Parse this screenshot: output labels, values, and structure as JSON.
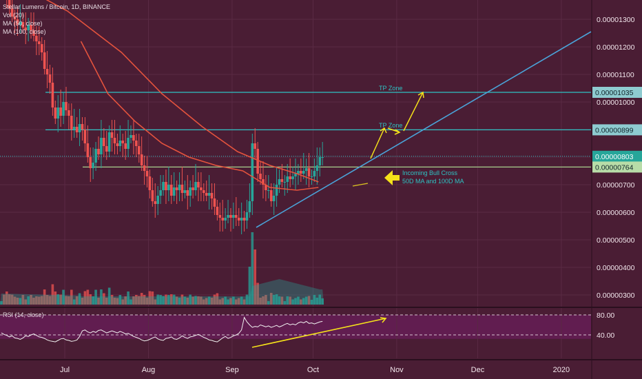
{
  "legend": {
    "symbol": "Stellar Lumens / Bitcoin, 1D, BINANCE",
    "vol": "Vol (20)",
    "ma50": "MA (50, close)",
    "ma100": "MA (100, close)"
  },
  "rsi_label": "RSI (14, close)",
  "colors": {
    "background": "#4a1d34",
    "up": "#26a69a",
    "down": "#ef5350",
    "ma": "#e5533d",
    "level_line": "#2ec4c4",
    "yellow": "#f5e21a",
    "trendline": "#4aa3d8",
    "price_tag_bg": "#8ecbd0",
    "rsi_band": "#6a1e5a"
  },
  "chart_data": [
    {
      "type": "candlestick",
      "title": "Stellar Lumens / Bitcoin, 1D, BINANCE",
      "ylim": [
        2.5e-06,
        1.36e-05
      ],
      "y_ticks": [
        "0.00001300",
        "0.00001200",
        "0.00001100",
        "0.00001000",
        "0.00000900",
        "0.00000800",
        "0.00000700",
        "0.00000600",
        "0.00000500",
        "0.00000400",
        "0.00000300"
      ],
      "x_ticks": [
        "Jul",
        "Aug",
        "Sep",
        "Oct",
        "Nov",
        "Dec",
        "2020"
      ],
      "x_tick_days": [
        24,
        55,
        86,
        116,
        147,
        177,
        208
      ],
      "x_range_days": [
        0,
        219
      ],
      "price_labels": [
        {
          "value": 1.035e-05,
          "text": "0.00001035"
        },
        {
          "value": 8.99e-06,
          "text": "0.00000899"
        },
        {
          "value": 8.03e-06,
          "text": "0.00000803"
        },
        {
          "value": 7.64e-06,
          "text": "0.00000764"
        }
      ],
      "horizontal_levels": [
        1.035e-05,
        8.99e-06
      ],
      "support_level": 7.64e-06,
      "candle_closes": [
        1.45e-05,
        1.42e-05,
        1.38e-05,
        1.34e-05,
        1.31e-05,
        1.3e-05,
        1.28e-05,
        1.29e-05,
        1.27e-05,
        1.26e-05,
        1.28e-05,
        1.26e-05,
        1.24e-05,
        1.22e-05,
        1.21e-05,
        1.18e-05,
        1.12e-05,
        1.1e-05,
        1.07e-05,
        9.8e-06,
        9.4e-06,
        9.8e-06,
        9.5e-06,
        1e-05,
        9.7e-06,
        9.5e-06,
        9e-06,
        9.1e-06,
        8.9e-06,
        9.2e-06,
        9e-06,
        8.5e-06,
        8e-06,
        7.6e-06,
        7.8e-06,
        8.3e-06,
        8.1e-06,
        8.7e-06,
        8.4e-06,
        8.2e-06,
        8.9e-06,
        8.7e-06,
        8.5e-06,
        8.4e-06,
        8.6e-06,
        8.5e-06,
        8.3e-06,
        8.7e-06,
        8.8e-06,
        8.6e-06,
        8.4e-06,
        8.1e-06,
        7.7e-06,
        7.5e-06,
        7.3e-06,
        6.8e-06,
        6.4e-06,
        6.3e-06,
        6.6e-06,
        6.8e-06,
        7.1e-06,
        6.8e-06,
        7e-06,
        6.6e-06,
        6.9e-06,
        6.8e-06,
        7e-06,
        6.7e-06,
        6.8e-06,
        6.6e-06,
        6.9e-06,
        6.8e-06,
        7.1e-06,
        6.9e-06,
        6.8e-06,
        6.7e-06,
        6.6e-06,
        6.7e-06,
        6.5e-06,
        6.2e-06,
        5.9e-06,
        5.8e-06,
        5.7e-06,
        5.8e-06,
        5.9e-06,
        5.8e-06,
        5.9e-06,
        5.8e-06,
        5.7e-06,
        5.8e-06,
        5.7e-06,
        6e-06,
        6.4e-06,
        8.5e-06,
        8.3e-06,
        7.4e-06,
        7.2e-06,
        7e-06,
        6.8e-06,
        6.8e-06,
        6.4e-06,
        6.6e-06,
        7e-06,
        7.2e-06,
        7.1e-06,
        7.1e-06,
        7.3e-06,
        7.2e-06,
        7.3e-06,
        7.4e-06,
        7.5e-06,
        7.4e-06,
        7.5e-06,
        7.6e-06,
        7.3e-06,
        7.3e-06,
        7.5e-06,
        7.7e-06,
        8e-06,
        8e-06
      ],
      "ma50_points": [
        [
          0,
          1.462e-05
        ],
        [
          25,
          1.33e-05
        ],
        [
          45,
          1.18e-05
        ],
        [
          60,
          1.03e-05
        ],
        [
          75,
          9.1e-06
        ],
        [
          88,
          8.2e-06
        ],
        [
          100,
          7.7e-06
        ],
        [
          110,
          7.4e-06
        ],
        [
          118,
          7.1e-06
        ]
      ],
      "ma100_points": [
        [
          30,
          1.22e-05
        ],
        [
          40,
          1.03e-05
        ],
        [
          50,
          9.3e-06
        ],
        [
          60,
          8.5e-06
        ],
        [
          70,
          8e-06
        ],
        [
          80,
          7.7e-06
        ],
        [
          90,
          7.5e-06
        ],
        [
          95,
          7.2e-06
        ],
        [
          100,
          6.9e-06
        ],
        [
          110,
          6.8e-06
        ],
        [
          118,
          6.9e-06
        ]
      ],
      "annotations": [
        {
          "text": "TP Zone",
          "value": 1.04e-05,
          "day": 124
        },
        {
          "text": "TP Zone",
          "value": 9.05e-06,
          "day": 124
        },
        {
          "text": "Incoming Bull Cross",
          "value": 7.4e-06,
          "day": 133
        },
        {
          "text": "50D MA and 100D MA",
          "value": 7.1e-06,
          "day": 133
        }
      ]
    },
    {
      "type": "volume",
      "name": "Vol (20)"
    },
    {
      "type": "line",
      "name": "RSI (14, close)",
      "y_ticks": [
        "80.00",
        "40.00"
      ],
      "band": [
        30,
        70
      ],
      "values": [
        44,
        41,
        39,
        36,
        38,
        34,
        33,
        31,
        34,
        38,
        37,
        40,
        42,
        39,
        36,
        35,
        33,
        30,
        28,
        27,
        26,
        29,
        32,
        33,
        30,
        29,
        27,
        28,
        30,
        37,
        48,
        50,
        46,
        44,
        47,
        45,
        49,
        50,
        47,
        44,
        46,
        48,
        46,
        44,
        47,
        45,
        42,
        43,
        40,
        37,
        35,
        33,
        30,
        28,
        29,
        31,
        34,
        36,
        32,
        30,
        29,
        33,
        34,
        36,
        32,
        31,
        34,
        38,
        35,
        33,
        36,
        37,
        39,
        41,
        38,
        35,
        33,
        30,
        29,
        27,
        26,
        30,
        34,
        37,
        33,
        35,
        38,
        40,
        43,
        50,
        75,
        66,
        60,
        55,
        57,
        56,
        60,
        58,
        56,
        58,
        55,
        57,
        59,
        56,
        58,
        61,
        63,
        60,
        62,
        60,
        64,
        66,
        64,
        67,
        63,
        64,
        62,
        64,
        66,
        67
      ]
    }
  ]
}
